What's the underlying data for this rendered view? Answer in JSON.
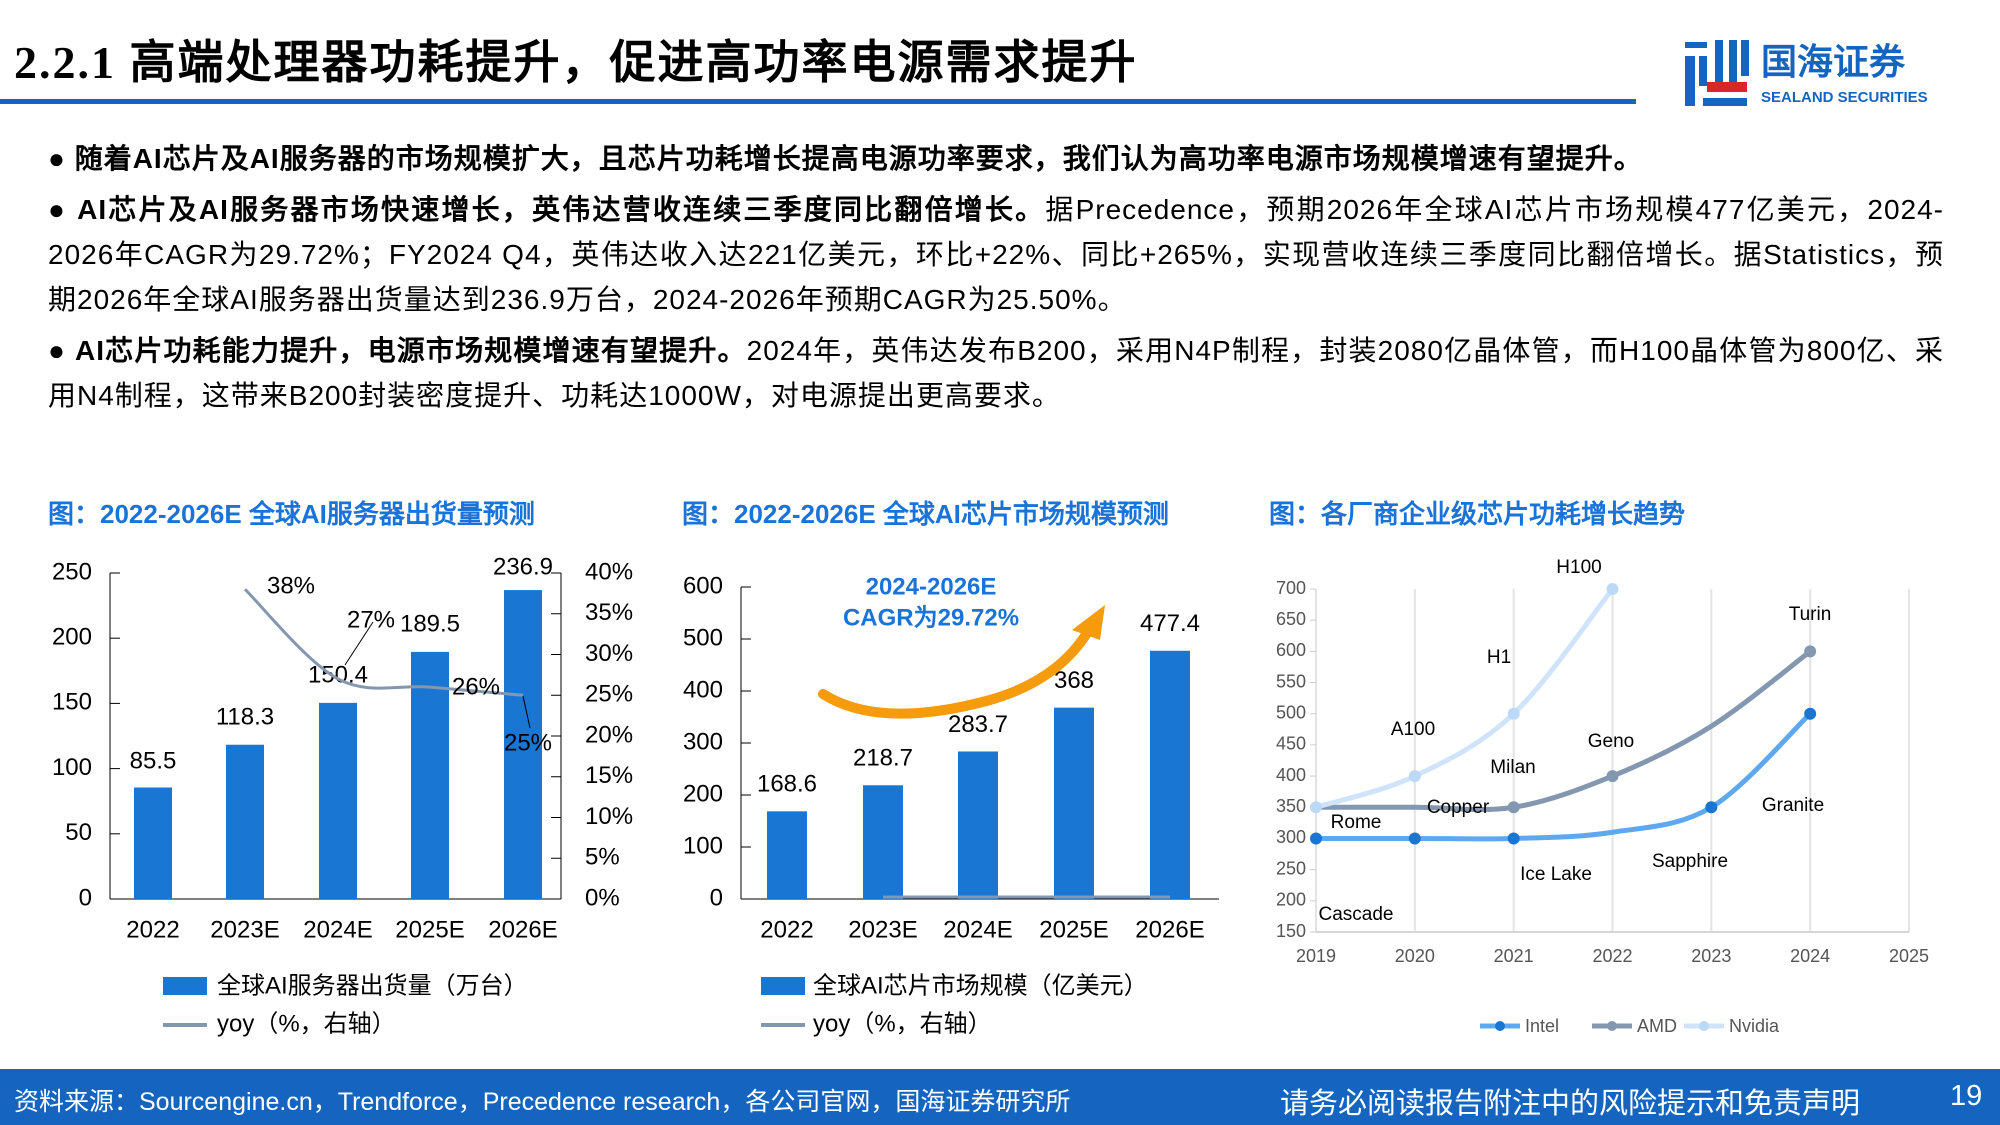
{
  "header": {
    "title": "2.2.1 高端处理器功耗提升，促进高功率电源需求提升",
    "logo_cn": "国海证券",
    "logo_en": "SEALAND SECURITIES",
    "colors": {
      "brand": "#1565c0",
      "logo_red": "#d9262b"
    }
  },
  "bullets": [
    {
      "bold": "随着AI芯片及AI服务器的市场规模扩大，且芯片功耗增长提高电源功率要求，我们认为高功率电源市场规模增速有望提升。",
      "text": ""
    },
    {
      "bold": "AI芯片及AI服务器市场快速增长，英伟达营收连续三季度同比翻倍增长。",
      "text": "据Precedence，预期2026年全球AI芯片市场规模477亿美元，2024-2026年CAGR为29.72%；FY2024 Q4，英伟达收入达221亿美元，环比+22%、同比+265%，实现营收连续三季度同比翻倍增长。据Statistics，预期2026年全球AI服务器出货量达到236.9万台，2024-2026年预期CAGR为25.50%。"
    },
    {
      "bold": "AI芯片功耗能力提升，电源市场规模增速有望提升。",
      "text": "2024年，英伟达发布B200，采用N4P制程，封装2080亿晶体管，而H100晶体管为800亿、采用N4制程，这带来B200封装密度提升、功耗达1000W，对电源提出更高要求。"
    }
  ],
  "chart_titles": [
    "图：2022-2026E 全球AI服务器出货量预测",
    "图：2022-2026E 全球AI芯片市场规模预测",
    "图：各厂商企业级芯片功耗增长趋势"
  ],
  "chart_data": [
    {
      "type": "bar",
      "categories": [
        "2022",
        "2023E",
        "2024E",
        "2025E",
        "2026E"
      ],
      "series": [
        {
          "name": "全球AI服务器出货量（万台）",
          "values": [
            85.5,
            118.3,
            150.4,
            189.5,
            236.9
          ],
          "color": "#1976d2"
        },
        {
          "name": "yoy（%，右轴）",
          "type": "line",
          "axis": "right",
          "values": [
            null,
            38,
            27,
            26,
            25
          ],
          "labels": [
            "",
            "38%",
            "27%",
            "26%",
            "25%"
          ],
          "color": "#8497b0"
        }
      ],
      "ylim": [
        0,
        250
      ],
      "yticks": [
        "0",
        "50",
        "100",
        "150",
        "200",
        "250"
      ],
      "y2lim": [
        0,
        40
      ],
      "y2ticks": [
        "0%",
        "5%",
        "10%",
        "15%",
        "20%",
        "25%",
        "30%",
        "35%",
        "40%"
      ],
      "legend": "bottom",
      "grid": false
    },
    {
      "type": "bar",
      "categories": [
        "2022",
        "2023E",
        "2024E",
        "2025E",
        "2026E"
      ],
      "series": [
        {
          "name": "全球AI芯片市场规模（亿美元）",
          "values": [
            168.6,
            218.7,
            283.7,
            368,
            477.4
          ],
          "color": "#1976d2"
        },
        {
          "name": "yoy（%，右轴）",
          "type": "line",
          "color": "#8497b0"
        }
      ],
      "annotation": {
        "line1": "2024-2026E",
        "line2": "CAGR为29.72%",
        "color": "#1a73d9",
        "arrow_color": "#f59b0c"
      },
      "ylim": [
        0,
        600
      ],
      "yticks": [
        "0",
        "100",
        "200",
        "300",
        "400",
        "500",
        "600"
      ],
      "legend": "bottom",
      "grid": false
    },
    {
      "type": "line",
      "x": [
        2019,
        2020,
        2021,
        2022,
        2023,
        2024
      ],
      "xticks": [
        "2019",
        "2020",
        "2021",
        "2022",
        "2023",
        "2024",
        "2025"
      ],
      "ylim": [
        150,
        700
      ],
      "yticks": [
        "150",
        "200",
        "250",
        "300",
        "350",
        "400",
        "450",
        "500",
        "550",
        "600",
        "650",
        "700"
      ],
      "grid": true,
      "legend": "bottom",
      "series": [
        {
          "name": "Intel",
          "values": [
            300,
            300,
            300,
            310,
            350,
            500
          ],
          "markers": [
            true,
            true,
            true,
            false,
            true,
            true
          ],
          "color": "#5ea8f0",
          "marker_color": "#1976d2"
        },
        {
          "name": "AMD",
          "values": [
            350,
            350,
            350,
            400,
            480,
            600
          ],
          "markers": [
            false,
            false,
            true,
            true,
            false,
            true
          ],
          "color": "#8497b0",
          "marker_color": "#8497b0"
        },
        {
          "name": "Nvidia",
          "values": [
            350,
            400,
            500,
            700,
            null,
            null
          ],
          "markers": [
            true,
            true,
            true,
            true,
            false,
            false
          ],
          "color": "#cfe4fa",
          "marker_color": "#bcd9f7"
        }
      ],
      "annotations": [
        "H100",
        "Turin",
        "H1",
        "A100",
        "Geno",
        "Milan",
        "Copper",
        "Rome",
        "Granite",
        "Sapphire",
        "Ice Lake",
        "Cascade"
      ]
    }
  ],
  "footer": {
    "source": "资料来源：Sourcengine.cn，Trendforce，Precedence research，各公司官网，国海证券研究所",
    "disclaimer": "请务必阅读报告附注中的风险提示和免责声明",
    "page": "19"
  }
}
